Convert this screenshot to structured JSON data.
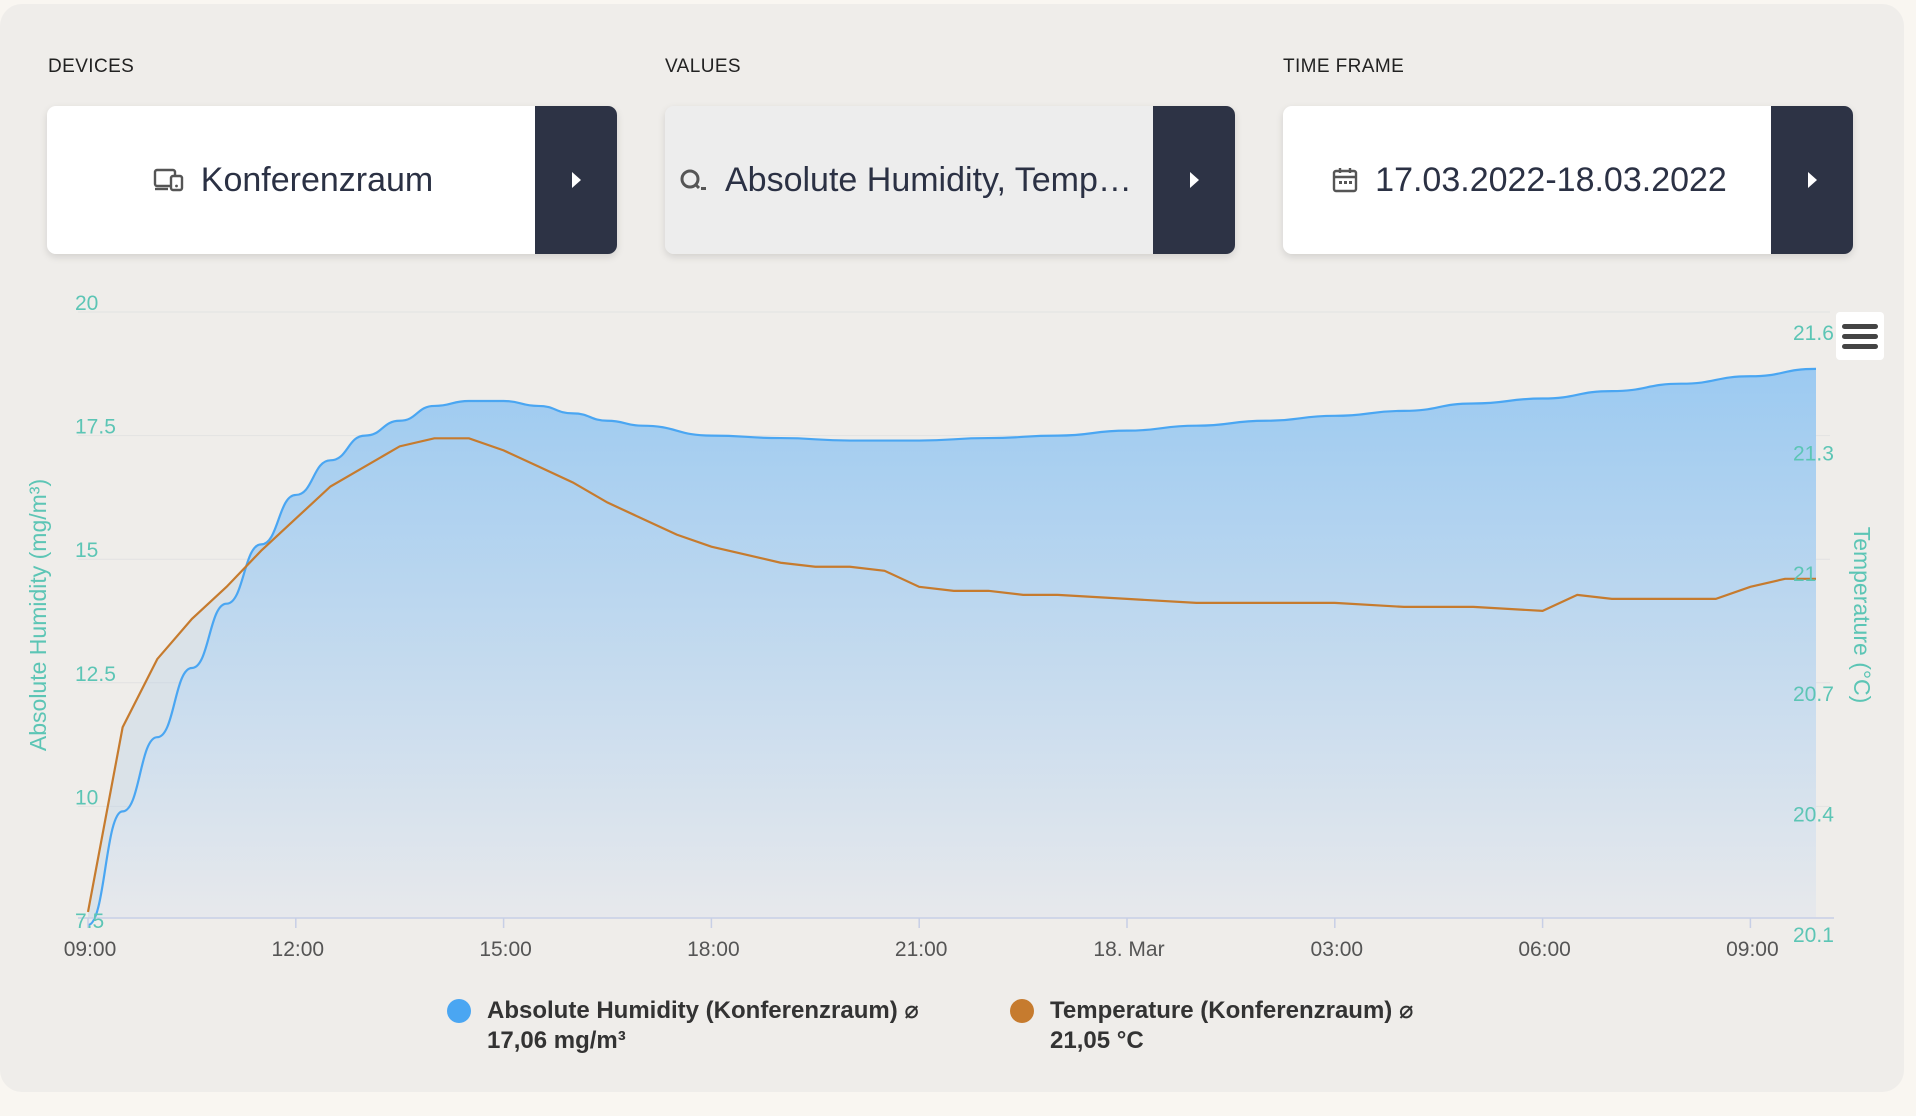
{
  "filters": {
    "devices": {
      "label": "DEVICES",
      "value": "Konferenzraum",
      "icon": "devices-icon"
    },
    "values": {
      "label": "VALUES",
      "value": "Absolute Humidity, Temper...",
      "icon": "search-icon"
    },
    "time_frame": {
      "label": "TIME FRAME",
      "value": "17.03.2022-18.03.2022",
      "icon": "calendar-icon"
    }
  },
  "colors": {
    "humidity": "#4aa6f2",
    "temperature": "#c67b2e",
    "axis_text": "#5cc5b5",
    "button": "#2d3345"
  },
  "legend": [
    {
      "name": "Absolute Humidity (Konferenzraum) ⌀",
      "avg": "17,06 mg/m³"
    },
    {
      "name": "Temperature (Konferenzraum) ⌀",
      "avg": "21,05 °C"
    }
  ],
  "chart_data": {
    "type": "area",
    "xlabel": "",
    "x_tick_labels": [
      "09:00",
      "12:00",
      "15:00",
      "18:00",
      "21:00",
      "18. Mar",
      "03:00",
      "06:00",
      "09:00"
    ],
    "x_range_hours": [
      0,
      25
    ],
    "y_left": {
      "label": "Absolute Humidity (mg/m³)",
      "ticks": [
        "20",
        "17.5",
        "15",
        "12.5",
        "10",
        "7.5"
      ],
      "range": [
        7.5,
        20
      ]
    },
    "y_right": {
      "label": "Temperature (°C)",
      "ticks": [
        "21.6",
        "21.3",
        "21",
        "20.7",
        "20.4",
        "20.1"
      ],
      "range": [
        20.1,
        21.6
      ]
    },
    "series": [
      {
        "name": "Absolute Humidity (Konferenzraum)",
        "axis": "left",
        "type": "area",
        "hours": [
          0,
          0.5,
          1,
          1.5,
          2,
          2.5,
          3,
          3.5,
          4,
          4.5,
          5,
          5.5,
          6,
          6.5,
          7,
          7.5,
          8,
          9,
          10,
          11,
          12,
          13,
          14,
          15,
          16,
          17,
          18,
          19,
          20,
          21,
          22,
          23,
          24,
          25
        ],
        "values": [
          7.6,
          9.9,
          11.4,
          12.8,
          14.1,
          15.3,
          16.3,
          17.0,
          17.5,
          17.8,
          18.1,
          18.2,
          18.2,
          18.1,
          17.95,
          17.8,
          17.7,
          17.5,
          17.45,
          17.4,
          17.4,
          17.45,
          17.5,
          17.6,
          17.7,
          17.8,
          17.9,
          18.0,
          18.15,
          18.25,
          18.4,
          18.55,
          18.7,
          18.85
        ]
      },
      {
        "name": "Temperature (Konferenzraum)",
        "axis": "right",
        "type": "line",
        "hours": [
          0,
          0.5,
          1,
          1.5,
          2,
          2.5,
          3,
          3.5,
          4,
          4.5,
          5,
          5.5,
          6,
          6.5,
          7,
          7.5,
          8,
          8.5,
          9,
          9.5,
          10,
          10.5,
          11,
          11.5,
          12,
          12.5,
          13,
          13.5,
          14,
          15,
          16,
          17,
          18,
          19,
          20,
          21,
          21.5,
          22,
          22.5,
          23,
          23.5,
          24,
          24.5,
          25
        ],
        "values": [
          20.17,
          20.63,
          20.8,
          20.9,
          20.98,
          21.07,
          21.15,
          21.23,
          21.28,
          21.33,
          21.35,
          21.35,
          21.32,
          21.28,
          21.24,
          21.19,
          21.15,
          21.11,
          21.08,
          21.06,
          21.04,
          21.03,
          21.03,
          21.02,
          20.98,
          20.97,
          20.97,
          20.96,
          20.96,
          20.95,
          20.94,
          20.94,
          20.94,
          20.93,
          20.93,
          20.92,
          20.96,
          20.95,
          20.95,
          20.95,
          20.95,
          20.98,
          21.0,
          21.0
        ]
      }
    ]
  }
}
